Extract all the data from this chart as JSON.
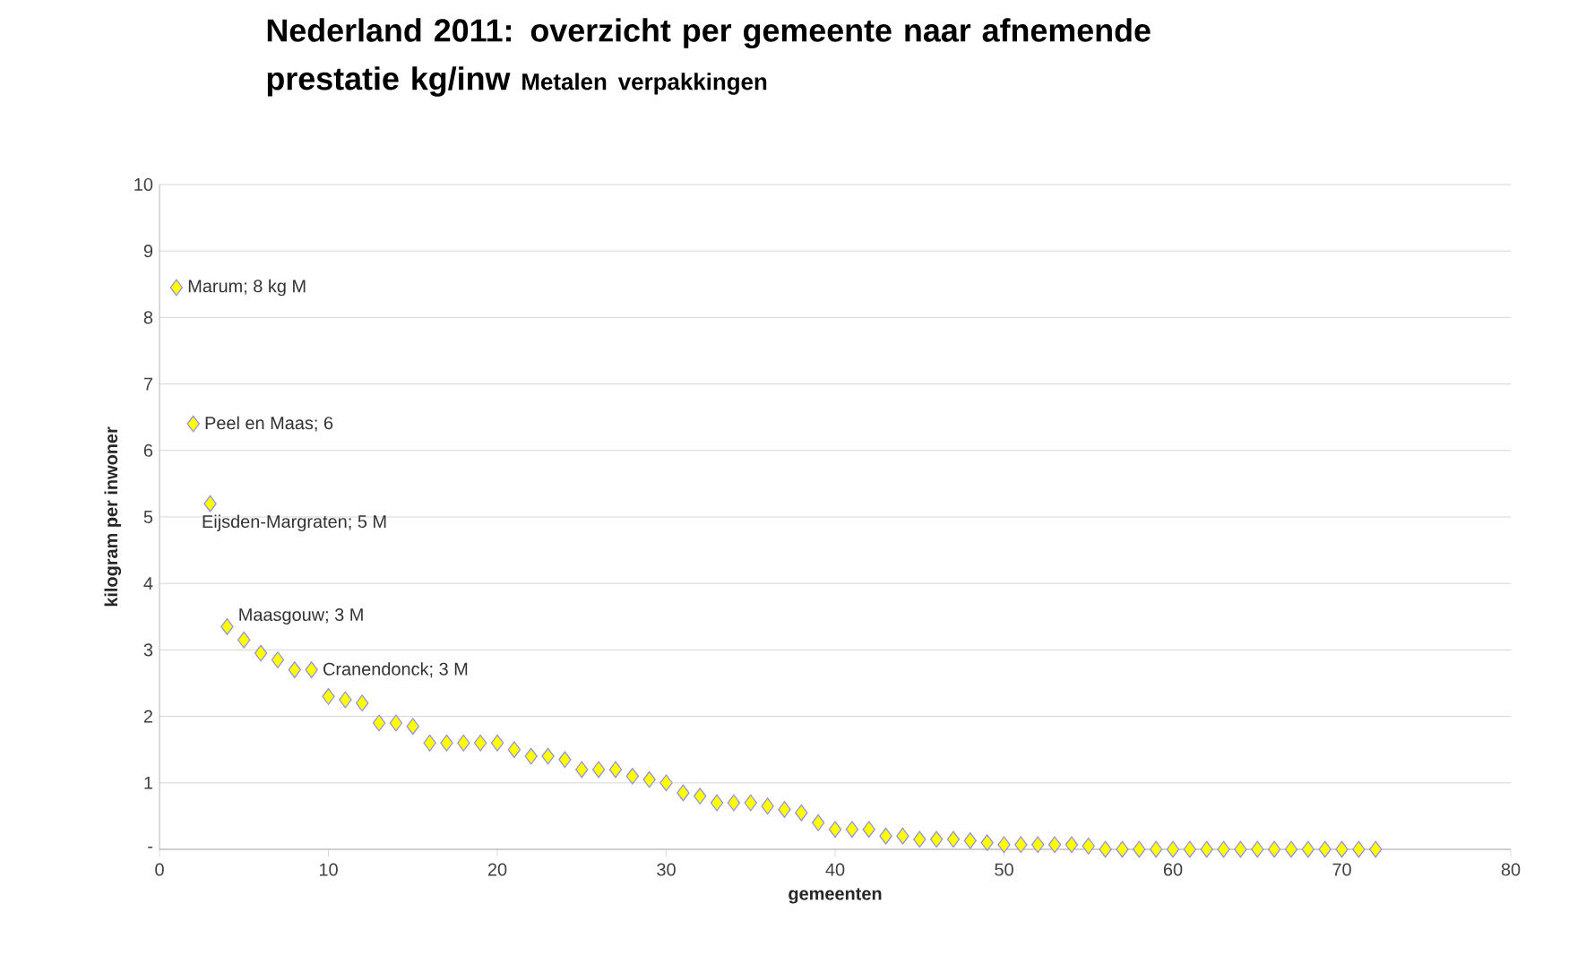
{
  "chart_data": {
    "type": "scatter",
    "title": "Nederland 2011: overzicht per gemeente naar afnemende prestatie kg/inw",
    "subtitle": "Metalen verpakkingen",
    "xlabel": "gemeenten",
    "ylabel": "kilogram per inwoner",
    "x": [
      1,
      2,
      3,
      4,
      5,
      6,
      7,
      8,
      9,
      10,
      11,
      12,
      13,
      14,
      15,
      16,
      17,
      18,
      19,
      20,
      21,
      22,
      23,
      24,
      25,
      26,
      27,
      28,
      29,
      30,
      31,
      32,
      33,
      34,
      35,
      36,
      37,
      38,
      39,
      40,
      41,
      42,
      43,
      44,
      45,
      46,
      47,
      48,
      49,
      50,
      51,
      52,
      53,
      54,
      55,
      56,
      57,
      58,
      59,
      60,
      61,
      62,
      63,
      64,
      65,
      66,
      67,
      68,
      69,
      70,
      71,
      72
    ],
    "series": [
      {
        "color": "#ffff00",
        "values": [
          8.45,
          6.4,
          5.2,
          3.35,
          3.15,
          2.95,
          2.85,
          2.7,
          2.7,
          2.3,
          2.25,
          2.2,
          1.9,
          1.9,
          1.85,
          1.6,
          1.6,
          1.6,
          1.6,
          1.6,
          1.5,
          1.4,
          1.4,
          1.35,
          1.2,
          1.2,
          1.2,
          1.1,
          1.05,
          1.0,
          0.85,
          0.8,
          0.7,
          0.7,
          0.7,
          0.65,
          0.6,
          0.55,
          0.4,
          0.3,
          0.3,
          0.3,
          0.2,
          0.2,
          0.15,
          0.15,
          0.15,
          0.13,
          0.1,
          0.07,
          0.07,
          0.07,
          0.07,
          0.07,
          0.05,
          0,
          0,
          0,
          0,
          0,
          0,
          0,
          0,
          0,
          0,
          0,
          0,
          0,
          0,
          0,
          0,
          0
        ]
      }
    ],
    "xlim": [
      0,
      80
    ],
    "xticks": [
      0,
      10,
      20,
      30,
      40,
      50,
      60,
      70,
      80
    ],
    "ylim": [
      0,
      10
    ],
    "yticks": [
      {
        "value": 0,
        "label": "-"
      },
      1,
      2,
      3,
      4,
      5,
      6,
      7,
      8,
      9,
      10
    ],
    "grid": "y",
    "marker": "diamond",
    "annotations": [
      {
        "text": "Marum;  8 kg M",
        "x": 1,
        "y": 8.45
      },
      {
        "text": "Peel en Maas;  6",
        "x": 2,
        "y": 6.4
      },
      {
        "text": "Eijsden-Margraten;  5 M",
        "x": 3,
        "y": 5.2
      },
      {
        "text": "Maasgouw;  3 M",
        "x": 4,
        "y": 3.35
      },
      {
        "text": "Cranendonck;  3 M",
        "x": 9,
        "y": 2.7
      }
    ]
  }
}
